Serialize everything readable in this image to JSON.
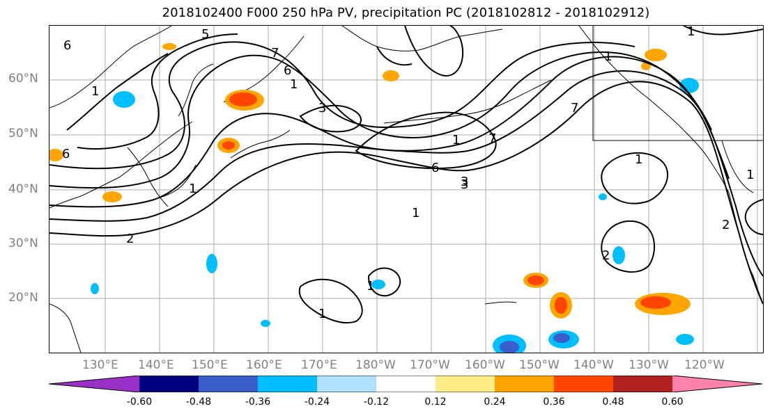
{
  "title": "2018102400 F000 250 hPa PV, precipitation PC (2018102812 - 2018102912)",
  "map": {
    "type": "contour",
    "lat_labels": [
      "60°N",
      "50°N",
      "40°N",
      "30°N",
      "20°N"
    ],
    "lon_labels": [
      "130°E",
      "140°E",
      "150°E",
      "160°E",
      "170°E",
      "180°W",
      "170°W",
      "160°W",
      "150°W",
      "140°W",
      "130°W",
      "120°W"
    ],
    "contour_labels": [
      "5",
      "6",
      "7",
      "1",
      "3",
      "2",
      "1",
      "6",
      "3",
      "1",
      "1",
      "7",
      "2",
      "1",
      "1",
      "6",
      "7",
      "1",
      "3",
      "1",
      "6",
      "2",
      "1",
      "1",
      "1"
    ],
    "colors": {
      "contour": "#000000",
      "grid": "#aaaaaa"
    }
  },
  "colorbar": {
    "colors": [
      "#9b30c8",
      "#000080",
      "#3a5fcd",
      "#00bfff",
      "#b0e0ff",
      "#ffffff",
      "#ffee88",
      "#ffa500",
      "#ff4500",
      "#b22222",
      "#ff82ab"
    ],
    "tick_labels": [
      "-0.60",
      "-0.48",
      "-0.36",
      "-0.24",
      "-0.12",
      "0.12",
      "0.24",
      "0.36",
      "0.48",
      "0.60"
    ]
  }
}
